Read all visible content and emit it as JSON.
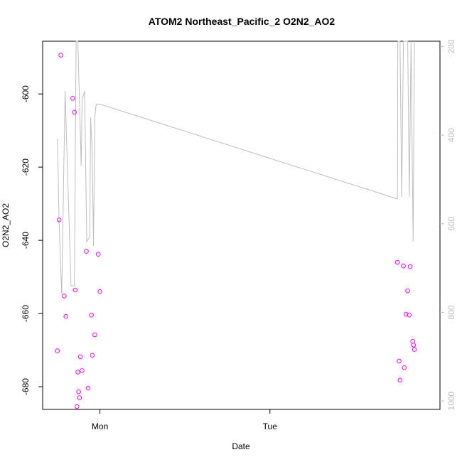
{
  "chart_data": {
    "type": "scatter",
    "title": "ATOM2 Northeast_Pacific_2 O2N2_AO2",
    "xlabel": "Date",
    "ylabel": "O2N2_AO2",
    "x_ticks": [
      "Mon",
      "Tue"
    ],
    "y_ticks": [
      "-600",
      "-620",
      "-640",
      "-660",
      "-680"
    ],
    "y2_ticks": [
      "200",
      "400",
      "600",
      "800",
      "1000"
    ],
    "colors": {
      "points": "#ff00ff",
      "line": "#bebebe",
      "right_axis": "#bebebe",
      "frame": "#000000"
    },
    "grid": false,
    "xlim_days": [
      -0.337,
      2.0
    ],
    "ylim": [
      -686.2,
      -585.6
    ],
    "y2lim": [
      1019,
      188
    ],
    "series": [
      {
        "kind": "points",
        "x": [
          -0.25,
          -0.24,
          -0.23,
          -0.21,
          -0.2,
          -0.16,
          -0.15,
          -0.145,
          -0.135,
          -0.13,
          -0.125,
          -0.12,
          -0.115,
          -0.105,
          -0.08,
          -0.07,
          -0.05,
          -0.045,
          -0.03,
          -0.01,
          0.0,
          1.75,
          1.76,
          1.765,
          1.785,
          1.79,
          1.8,
          1.81,
          1.82,
          1.825,
          1.84,
          1.845,
          1.85
        ],
        "y": [
          -670.2,
          -634.4,
          -589.4,
          -655.2,
          -660.8,
          -601.2,
          -605.0,
          -653.6,
          -685.4,
          -676.0,
          -681.4,
          -683.0,
          -671.8,
          -675.6,
          -643.0,
          -680.4,
          -660.4,
          -671.4,
          -665.8,
          -643.8,
          -654.0,
          -646.0,
          -673.0,
          -678.2,
          -647.0,
          -674.8,
          -660.2,
          -653.8,
          -660.4,
          -647.2,
          -667.6,
          -668.6,
          -669.8
        ]
      },
      {
        "kind": "line",
        "x": [
          -0.25,
          -0.24,
          -0.225,
          -0.205,
          -0.17,
          -0.15,
          -0.14,
          -0.13,
          -0.11,
          -0.105,
          -0.09,
          -0.078,
          -0.06,
          -0.055,
          -0.045,
          -0.038,
          -0.03,
          -0.022,
          -0.01,
          0.0,
          1.75,
          1.752,
          1.755,
          1.765,
          1.775,
          1.785,
          1.795,
          1.81,
          1.82,
          1.83,
          1.842,
          1.85
        ],
        "y": [
          408,
          600,
          760,
          300,
          740,
          740,
          188,
          188,
          470,
          320,
          300,
          640,
          630,
          360,
          440,
          650,
          360,
          330,
          330,
          330,
          544,
          188,
          188,
          188,
          540,
          188,
          188,
          188,
          540,
          188,
          640,
          188
        ]
      }
    ]
  }
}
